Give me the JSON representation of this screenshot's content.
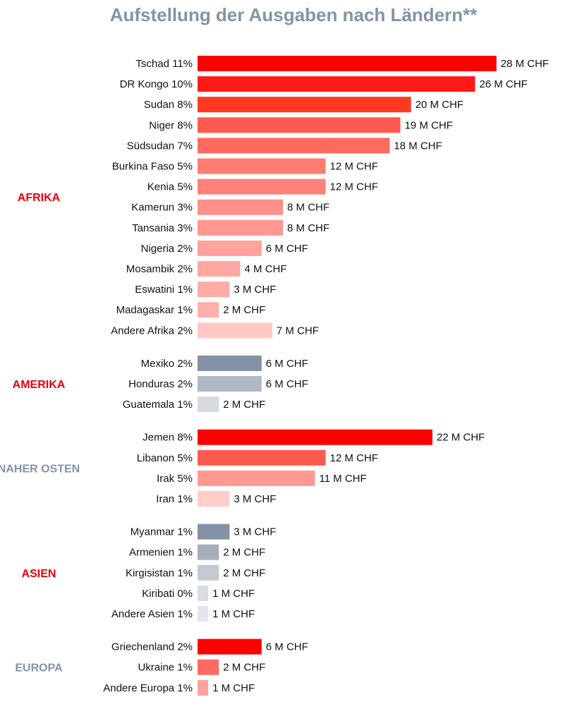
{
  "chart_data": {
    "type": "bar",
    "orientation": "horizontal",
    "title": "Aufstellung der Ausgaben nach Ländern**",
    "unit": "M CHF",
    "groups": [
      {
        "name": "AFRIKA",
        "color": "#e8000d",
        "items": [
          {
            "country": "Tschad",
            "share": "11%",
            "value": 28,
            "value_label": "28 M CHF",
            "color": "#ff0000"
          },
          {
            "country": "DR Kongo",
            "share": "10%",
            "value": 26,
            "value_label": "26 M CHF",
            "color": "#ff1a1a"
          },
          {
            "country": "Sudan",
            "share": "8%",
            "value": 20,
            "value_label": "20 M CHF",
            "color": "#ff3a20"
          },
          {
            "country": "Niger",
            "share": "8%",
            "value": 19,
            "value_label": "19 M CHF",
            "color": "#ff5a50"
          },
          {
            "country": "Südsudan",
            "share": "7%",
            "value": 18,
            "value_label": "18 M CHF",
            "color": "#ff6b60"
          },
          {
            "country": "Burkina Faso",
            "share": "5%",
            "value": 12,
            "value_label": "12 M CHF",
            "color": "#ff7c72"
          },
          {
            "country": "Kenia",
            "share": "5%",
            "value": 12,
            "value_label": "12 M CHF",
            "color": "#ff8178"
          },
          {
            "country": "Kamerun",
            "share": "3%",
            "value": 8,
            "value_label": "8 M CHF",
            "color": "#ff9088"
          },
          {
            "country": "Tansania",
            "share": "3%",
            "value": 8,
            "value_label": "8 M CHF",
            "color": "#ff968f"
          },
          {
            "country": "Nigeria",
            "share": "2%",
            "value": 6,
            "value_label": "6 M CHF",
            "color": "#ffa39d"
          },
          {
            "country": "Mosambik",
            "share": "2%",
            "value": 4,
            "value_label": "4 M CHF",
            "color": "#ffa8a3"
          },
          {
            "country": "Eswatini",
            "share": "1%",
            "value": 3,
            "value_label": "3 M CHF",
            "color": "#ffaca7"
          },
          {
            "country": "Madagaskar",
            "share": "1%",
            "value": 2,
            "value_label": "2 M CHF",
            "color": "#ffb0ab"
          },
          {
            "country": "Andere Afrika",
            "share": "2%",
            "value": 7,
            "value_label": "7 M CHF",
            "color": "#ffc7c4"
          }
        ]
      },
      {
        "name": "AMERIKA",
        "color": "#e8000d",
        "items": [
          {
            "country": "Mexiko",
            "share": "2%",
            "value": 6,
            "value_label": "6 M CHF",
            "color": "#8591a4"
          },
          {
            "country": "Honduras",
            "share": "2%",
            "value": 6,
            "value_label": "6 M CHF",
            "color": "#b0b8c5"
          },
          {
            "country": "Guatemala",
            "share": "1%",
            "value": 2,
            "value_label": "2 M CHF",
            "color": "#d5d9e0"
          }
        ]
      },
      {
        "name": "NAHER OSTEN",
        "color": "#8593a6",
        "items": [
          {
            "country": "Jemen",
            "share": "8%",
            "value": 22,
            "value_label": "22 M CHF",
            "color": "#ff0000"
          },
          {
            "country": "Libanon",
            "share": "5%",
            "value": 12,
            "value_label": "12 M CHF",
            "color": "#ff5a50"
          },
          {
            "country": "Irak",
            "share": "5%",
            "value": 11,
            "value_label": "11 M CHF",
            "color": "#ff9a93"
          },
          {
            "country": "Iran",
            "share": "1%",
            "value": 3,
            "value_label": "3 M CHF",
            "color": "#ffcdca"
          }
        ]
      },
      {
        "name": "ASIEN",
        "color": "#e8000d",
        "items": [
          {
            "country": "Myanmar",
            "share": "1%",
            "value": 3,
            "value_label": "3 M CHF",
            "color": "#8591a4"
          },
          {
            "country": "Armenien",
            "share": "1%",
            "value": 2,
            "value_label": "2 M CHF",
            "color": "#a6aebb"
          },
          {
            "country": "Kirgisistan",
            "share": "1%",
            "value": 2,
            "value_label": "2 M CHF",
            "color": "#c4c9d2"
          },
          {
            "country": "Kiribati",
            "share": "0%",
            "value": 1,
            "value_label": "1 M CHF",
            "color": "#d8dce2"
          },
          {
            "country": "Andere Asien",
            "share": "1%",
            "value": 1,
            "value_label": "1 M CHF",
            "color": "#e3e6ea"
          }
        ]
      },
      {
        "name": "EUROPA",
        "color": "#8593a6",
        "items": [
          {
            "country": "Griechenland",
            "share": "2%",
            "value": 6,
            "value_label": "6 M CHF",
            "color": "#ff0000"
          },
          {
            "country": "Ukraine",
            "share": "1%",
            "value": 2,
            "value_label": "2 M CHF",
            "color": "#ff6b60"
          },
          {
            "country": "Andere Europa",
            "share": "1%",
            "value": 1,
            "value_label": "1 M CHF",
            "color": "#ffa39d"
          }
        ]
      }
    ]
  }
}
